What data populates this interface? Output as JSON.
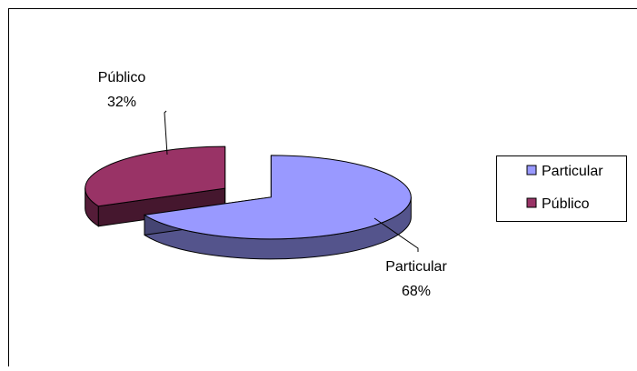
{
  "chart_data": {
    "type": "pie",
    "style": "3d-exploded",
    "slices": [
      {
        "label": "Particular",
        "value": 68,
        "percent_label": "68%",
        "color": "#9999ff"
      },
      {
        "label": "Público",
        "value": 32,
        "percent_label": "32%",
        "color": "#993366"
      }
    ],
    "legend": {
      "placement": "right",
      "items": [
        "Particular",
        "Público"
      ]
    }
  }
}
